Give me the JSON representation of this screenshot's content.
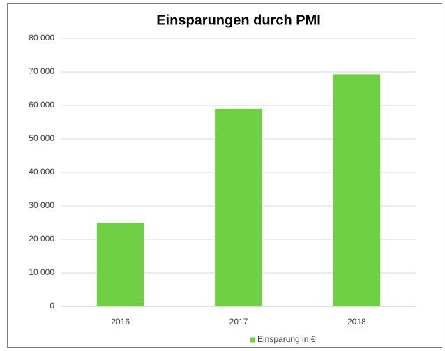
{
  "chart_data": {
    "type": "bar",
    "title": "Einsparungen durch PMI",
    "categories": [
      "2016",
      "2017",
      "2018"
    ],
    "series": [
      {
        "name": "Einsparung in €",
        "color": "#70d044",
        "values": [
          25000,
          59000,
          69300
        ]
      }
    ],
    "ylim": [
      0,
      80000
    ],
    "yticks": [
      0,
      {
        "value": 10000,
        "label": "10 000"
      },
      {
        "value": 20000,
        "label": "20 000"
      },
      {
        "value": 30000,
        "label": "30 000"
      },
      {
        "value": 40000,
        "label": "40 000"
      },
      {
        "value": 50000,
        "label": "50 000"
      },
      {
        "value": 60000,
        "label": "60 000"
      },
      {
        "value": 70000,
        "label": "70 000"
      },
      {
        "value": 80000,
        "label": "80 000"
      }
    ],
    "grid": true,
    "legend": "bottom"
  }
}
